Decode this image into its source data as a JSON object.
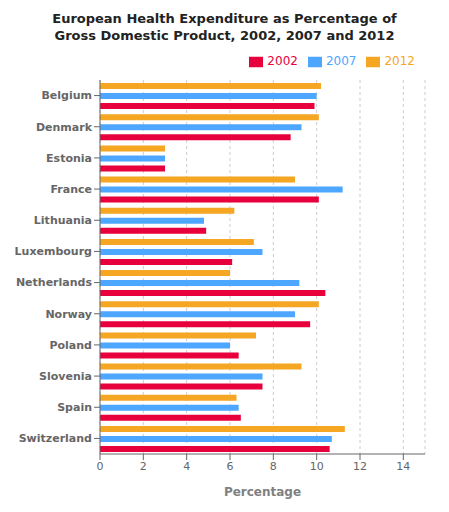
{
  "chart_data": {
    "type": "bar",
    "orientation": "horizontal",
    "title": "European Health Expenditure as Percentage of\nGross Domestic Product, 2002, 2007 and 2012",
    "categories": [
      "Belgium",
      "Denmark",
      "Estonia",
      "France",
      "Lithuania",
      "Luxembourg",
      "Netherlands",
      "Norway",
      "Poland",
      "Slovenia",
      "Spain",
      "Switzerland"
    ],
    "series": [
      {
        "name": "2012",
        "color": "#F5A623",
        "values": [
          10.2,
          10.1,
          3.0,
          9.0,
          6.2,
          7.1,
          6.0,
          10.1,
          7.2,
          9.3,
          6.3,
          11.3
        ]
      },
      {
        "name": "2007",
        "color": "#4DA6FF",
        "values": [
          10.0,
          9.3,
          3.0,
          11.2,
          4.8,
          7.5,
          9.2,
          9.0,
          6.0,
          7.5,
          6.4,
          10.7
        ]
      },
      {
        "name": "2002",
        "color": "#E8003D",
        "values": [
          9.9,
          8.8,
          3.0,
          10.1,
          4.9,
          6.1,
          10.4,
          9.7,
          6.4,
          7.5,
          6.5,
          10.6
        ]
      }
    ],
    "xlabel": "Percentage",
    "xlim": [
      0,
      15
    ],
    "xticks": [
      0,
      2,
      4,
      6,
      8,
      10,
      12,
      14
    ],
    "grid": true,
    "legend": "upper right"
  }
}
